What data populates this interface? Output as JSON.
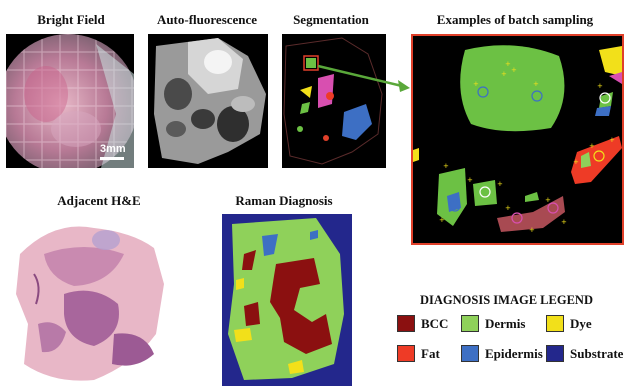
{
  "panels": {
    "bright_field": "Bright Field",
    "auto_fluorescence": "Auto-fluorescence",
    "segmentation": "Segmentation",
    "batch_sampling": "Examples of batch sampling",
    "adjacent_he": "Adjacent H&E",
    "raman_diagnosis": "Raman Diagnosis"
  },
  "scale_bar_label": "3mm",
  "legend": {
    "title": "DIAGNOSIS IMAGE LEGEND",
    "items": [
      {
        "label": "BCC",
        "color": "#8b1010"
      },
      {
        "label": "Dermis",
        "color": "#8fd15a"
      },
      {
        "label": "Dye",
        "color": "#f2e01a"
      },
      {
        "label": "Fat",
        "color": "#ee3b26"
      },
      {
        "label": "Epidermis",
        "color": "#3d6fc4"
      },
      {
        "label": "Substrate",
        "color": "#23278c"
      }
    ]
  },
  "colors": {
    "arrow": "#5aa83a",
    "zoom_border": "#e0402a"
  }
}
